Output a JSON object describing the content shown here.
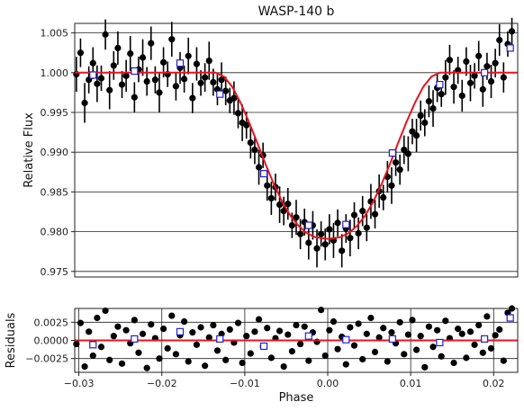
{
  "chart_data": [
    {
      "type": "scatter",
      "title": "WASP-140 b",
      "xlabel": "",
      "ylabel": "Relative Flux",
      "xlim": [
        -0.0305,
        0.0229
      ],
      "ylim": [
        0.9743,
        1.0062
      ],
      "grid": "horizontal",
      "yticks": [
        0.975,
        0.98,
        0.985,
        0.99,
        0.995,
        1.0,
        1.005
      ],
      "ytick_labels": [
        "0.975",
        "0.980",
        "0.985",
        "0.990",
        "0.995",
        "1.000",
        "1.005"
      ],
      "model": {
        "x": [
          -0.0305,
          -0.0135,
          -0.0125,
          -0.0115,
          -0.0105,
          -0.0095,
          -0.0085,
          -0.0075,
          -0.0065,
          -0.0055,
          -0.0045,
          -0.0035,
          -0.0025,
          -0.0015,
          0.0,
          0.0015,
          0.0025,
          0.0035,
          0.0045,
          0.0055,
          0.0065,
          0.0075,
          0.0085,
          0.0095,
          0.0105,
          0.0115,
          0.0125,
          0.0135,
          0.0229
        ],
        "y": [
          1.0,
          1.0,
          0.9995,
          0.9982,
          0.9962,
          0.9938,
          0.9912,
          0.9885,
          0.986,
          0.9838,
          0.982,
          0.9807,
          0.9798,
          0.9793,
          0.9791,
          0.9793,
          0.9798,
          0.9807,
          0.982,
          0.9838,
          0.986,
          0.9885,
          0.9912,
          0.9938,
          0.9962,
          0.9982,
          0.9995,
          1.0,
          1.0
        ]
      },
      "data": {
        "x": [
          -0.0303,
          -0.0298,
          -0.0293,
          -0.0288,
          -0.0283,
          -0.0278,
          -0.0273,
          -0.0268,
          -0.0263,
          -0.0258,
          -0.0253,
          -0.0248,
          -0.0243,
          -0.0238,
          -0.0233,
          -0.0228,
          -0.0223,
          -0.0218,
          -0.0213,
          -0.0208,
          -0.0203,
          -0.0198,
          -0.0193,
          -0.0188,
          -0.0183,
          -0.0178,
          -0.0173,
          -0.0168,
          -0.0163,
          -0.0158,
          -0.0153,
          -0.0148,
          -0.0143,
          -0.0138,
          -0.0133,
          -0.0128,
          -0.0123,
          -0.0118,
          -0.0113,
          -0.0108,
          -0.0103,
          -0.0098,
          -0.0093,
          -0.0088,
          -0.0083,
          -0.0078,
          -0.0073,
          -0.0068,
          -0.0063,
          -0.0058,
          -0.0053,
          -0.0048,
          -0.0043,
          -0.0038,
          -0.0033,
          -0.0028,
          -0.0023,
          -0.0018,
          -0.0013,
          -0.0008,
          -0.0003,
          0.0002,
          0.0007,
          0.0012,
          0.0017,
          0.0022,
          0.0027,
          0.0032,
          0.0037,
          0.0042,
          0.0047,
          0.0052,
          0.0057,
          0.0062,
          0.0067,
          0.0072,
          0.0077,
          0.0082,
          0.0087,
          0.0092,
          0.0097,
          0.0102,
          0.0107,
          0.0112,
          0.0117,
          0.0122,
          0.0127,
          0.0132,
          0.0137,
          0.0142,
          0.0147,
          0.0152,
          0.0157,
          0.0162,
          0.0167,
          0.0172,
          0.0177,
          0.0182,
          0.0187,
          0.0192,
          0.0197,
          0.0202,
          0.0207,
          0.0212,
          0.0217,
          0.0222
        ],
        "y": [
          0.9998,
          1.0025,
          0.9962,
          0.9991,
          1.0012,
          0.9986,
          0.9993,
          1.0048,
          0.9978,
          1.0009,
          1.0031,
          0.9985,
          0.9996,
          1.0024,
          0.9969,
          1.0004,
          1.0019,
          0.9989,
          1.0037,
          0.9991,
          0.9975,
          1.0013,
          0.9998,
          1.0042,
          0.9983,
          1.0006,
          0.9992,
          1.0021,
          0.9968,
          1.0011,
          0.9987,
          0.9994,
          1.0015,
          0.9988,
          0.9979,
          0.9991,
          0.9977,
          0.9965,
          0.9968,
          0.9949,
          0.9937,
          0.9934,
          0.9912,
          0.9903,
          0.9881,
          0.9896,
          0.9858,
          0.9842,
          0.9856,
          0.9834,
          0.9826,
          0.9835,
          0.9808,
          0.9818,
          0.9797,
          0.9812,
          0.9786,
          0.9808,
          0.9779,
          0.9797,
          0.9784,
          0.9803,
          0.9789,
          0.9811,
          0.9776,
          0.9804,
          0.9792,
          0.9821,
          0.9798,
          0.9826,
          0.9805,
          0.9838,
          0.9822,
          0.9851,
          0.9843,
          0.9869,
          0.9858,
          0.9887,
          0.9878,
          0.9903,
          0.9898,
          0.9926,
          0.9921,
          0.9946,
          0.9937,
          0.9964,
          0.9955,
          0.9981,
          0.9973,
          0.9994,
          1.0016,
          0.9982,
          1.0003,
          0.9971,
          1.0014,
          0.9987,
          0.9996,
          1.0021,
          0.9979,
          1.0008,
          0.9989,
          1.0012,
          1.0041,
          0.9994,
          1.0036,
          1.0052
        ],
        "err": [
          0.0022,
          0.0018,
          0.0025,
          0.0017,
          0.002,
          0.0023,
          0.0016,
          0.0019,
          0.0024,
          0.0018,
          0.0021,
          0.0017,
          0.002,
          0.0022,
          0.0019,
          0.0016,
          0.0023,
          0.0018,
          0.0021,
          0.0017,
          0.0025,
          0.0019,
          0.0016,
          0.0022,
          0.0018,
          0.002,
          0.0017,
          0.0023,
          0.0019,
          0.0021,
          0.0016,
          0.0018,
          0.0024,
          0.0017,
          0.002,
          0.0022,
          0.0018,
          0.0016,
          0.0021,
          0.0019,
          0.0023,
          0.0017,
          0.002,
          0.0018,
          0.0022,
          0.0016,
          0.0019,
          0.0021,
          0.0017,
          0.0023,
          0.0018,
          0.002,
          0.0016,
          0.0022,
          0.0019,
          0.0017,
          0.0021,
          0.0018,
          0.0024,
          0.0016,
          0.002,
          0.0019,
          0.0022,
          0.0017,
          0.0021,
          0.0018,
          0.0023,
          0.0016,
          0.002,
          0.0019,
          0.0017,
          0.0022,
          0.0018,
          0.0021,
          0.0016,
          0.002,
          0.0023,
          0.0017,
          0.0019,
          0.0018,
          0.0022,
          0.0016,
          0.0021,
          0.0019,
          0.0017,
          0.002,
          0.0023,
          0.0018,
          0.0016,
          0.0022,
          0.0019,
          0.0021,
          0.0017,
          0.002,
          0.0018,
          0.0023,
          0.0016,
          0.0019,
          0.0022,
          0.0017,
          0.0021,
          0.0018,
          0.002,
          0.0019,
          0.0016,
          0.0017
        ]
      },
      "binned": {
        "x": [
          -0.0283,
          -0.0233,
          -0.0178,
          -0.013,
          -0.0077,
          -0.0023,
          0.0022,
          0.0078,
          0.0135,
          0.0189,
          0.022
        ],
        "y": [
          0.9997,
          1.0002,
          1.0012,
          0.9973,
          0.9873,
          0.9808,
          0.9809,
          0.9899,
          0.9985,
          1.0,
          1.0031
        ]
      },
      "colors": {
        "data": "#000000",
        "model": "#e8141c",
        "binned": "#1f1fd6",
        "grid": "#000000"
      }
    },
    {
      "type": "scatter",
      "title": "",
      "xlabel": "Phase",
      "ylabel": "Residuals",
      "xlim": [
        -0.0305,
        0.0229
      ],
      "ylim": [
        -0.0044,
        0.0044
      ],
      "grid": "both",
      "xticks": [
        -0.03,
        -0.02,
        -0.01,
        0.0,
        0.01,
        0.02
      ],
      "xtick_labels": [
        "−0.03",
        "−0.02",
        "−0.01",
        "0.00",
        "0.01",
        "0.02"
      ],
      "yticks": [
        -0.0025,
        0.0,
        0.0025
      ],
      "ytick_labels": [
        "−0.0025",
        "0.0000",
        "0.0025"
      ],
      "zero_line": 0.0,
      "residuals": {
        "x": [
          -0.0303,
          -0.0298,
          -0.0293,
          -0.0288,
          -0.0283,
          -0.0278,
          -0.0273,
          -0.0268,
          -0.0263,
          -0.0258,
          -0.0253,
          -0.0248,
          -0.0243,
          -0.0238,
          -0.0233,
          -0.0228,
          -0.0223,
          -0.0218,
          -0.0213,
          -0.0208,
          -0.0203,
          -0.0198,
          -0.0193,
          -0.0188,
          -0.0183,
          -0.0178,
          -0.0173,
          -0.0168,
          -0.0163,
          -0.0158,
          -0.0153,
          -0.0148,
          -0.0143,
          -0.0138,
          -0.0133,
          -0.0128,
          -0.0123,
          -0.0118,
          -0.0113,
          -0.0108,
          -0.0103,
          -0.0098,
          -0.0093,
          -0.0088,
          -0.0083,
          -0.0078,
          -0.0073,
          -0.0068,
          -0.0063,
          -0.0058,
          -0.0053,
          -0.0048,
          -0.0043,
          -0.0038,
          -0.0033,
          -0.0028,
          -0.0023,
          -0.0018,
          -0.0013,
          -0.0008,
          -0.0003,
          0.0002,
          0.0007,
          0.0012,
          0.0017,
          0.0022,
          0.0027,
          0.0032,
          0.0037,
          0.0042,
          0.0047,
          0.0052,
          0.0057,
          0.0062,
          0.0067,
          0.0072,
          0.0077,
          0.0082,
          0.0087,
          0.0092,
          0.0097,
          0.0102,
          0.0107,
          0.0112,
          0.0117,
          0.0122,
          0.0127,
          0.0132,
          0.0137,
          0.0142,
          0.0147,
          0.0152,
          0.0157,
          0.0162,
          0.0167,
          0.0172,
          0.0177,
          0.0182,
          0.0187,
          0.0192,
          0.0197,
          0.0202,
          0.0207,
          0.0212,
          0.0217,
          0.0222
        ],
        "y": [
          -0.0005,
          0.0024,
          -0.0036,
          0.0012,
          -0.0021,
          0.0031,
          -0.0009,
          0.0041,
          -0.0027,
          0.0006,
          0.0019,
          -0.0032,
          0.0014,
          -0.0004,
          0.0028,
          -0.0017,
          0.0009,
          -0.0038,
          0.0022,
          0.0003,
          -0.0025,
          0.0016,
          -0.0011,
          0.0034,
          -0.0019,
          0.0007,
          0.0026,
          -0.0029,
          0.0011,
          -0.0006,
          0.0018,
          -0.0035,
          0.0004,
          0.0021,
          -0.0014,
          0.0009,
          -0.0027,
          0.0015,
          -0.0003,
          0.0024,
          -0.0031,
          0.0006,
          -0.0018,
          0.0012,
          0.0029,
          -0.0008,
          0.0017,
          -0.0024,
          0.0003,
          0.0013,
          -0.0036,
          0.0008,
          -0.0015,
          0.0021,
          -0.0005,
          0.0019,
          -0.0028,
          0.0011,
          -0.0002,
          0.0042,
          -0.0021,
          0.0014,
          0.0026,
          -0.0012,
          0.0005,
          -0.0033,
          0.0018,
          -0.0007,
          0.0023,
          -0.0026,
          0.0009,
          0.0031,
          -0.0016,
          0.0004,
          0.0017,
          -0.0029,
          0.0011,
          -0.0004,
          0.0025,
          -0.0019,
          0.0008,
          0.0028,
          -0.0013,
          0.0006,
          -0.0037,
          0.0019,
          -0.0009,
          0.0014,
          -0.0022,
          0.0027,
          0.0003,
          -0.0031,
          0.0016,
          0.0009,
          -0.0024,
          0.0012,
          -0.0006,
          0.0021,
          -0.0017,
          0.0033,
          -0.0011,
          0.0007,
          0.0015,
          -0.0028,
          0.0038,
          0.0044
        ]
      },
      "binned_residuals": {
        "x": [
          -0.0283,
          -0.0233,
          -0.0178,
          -0.013,
          -0.0077,
          -0.0023,
          0.0022,
          0.0078,
          0.0135,
          0.0189,
          0.022
        ],
        "y": [
          -0.0006,
          0.0002,
          0.0012,
          0.0002,
          -0.0008,
          0.0006,
          0.0001,
          0.0002,
          -0.0003,
          0.0002,
          0.0031
        ]
      }
    }
  ]
}
